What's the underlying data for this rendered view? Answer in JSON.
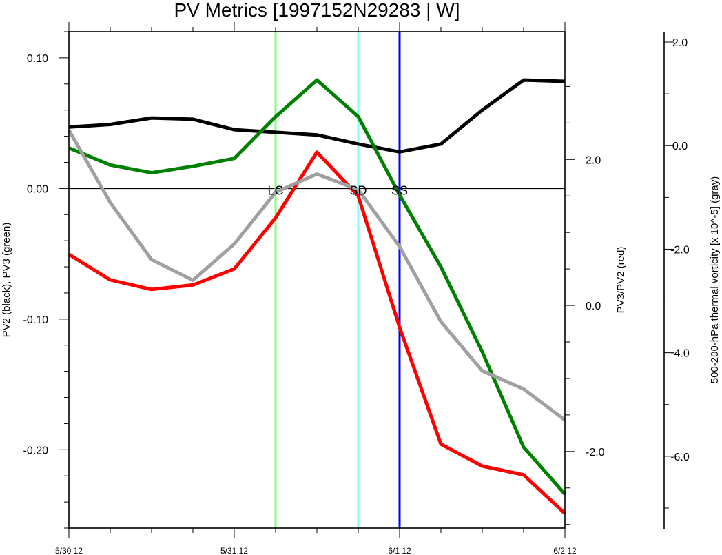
{
  "chart_data": {
    "type": "line",
    "title": "PV Metrics [1997152N29283 | W]",
    "x_tick_labels": [
      "5/30 12",
      "5/31 12",
      "6/1 12",
      "6/2 12"
    ],
    "x_step_hours": 6,
    "x_range_steps": [
      0,
      12
    ],
    "left_axis": {
      "label": "PV2 (black), PV3 (green)",
      "range": [
        -0.26,
        0.12
      ],
      "ticks": [
        0.1,
        0.0,
        -0.1,
        -0.2
      ],
      "tick_labels": [
        "0.10",
        "0.00",
        "-0.10",
        "-0.20"
      ]
    },
    "mid_axis": {
      "label": "PV3/PV2 (red)",
      "range": [
        -3.05,
        3.75
      ],
      "ticks": [
        2.0,
        0.0,
        -2.0
      ],
      "tick_labels": [
        "2.0",
        "0.0",
        "-2.0"
      ]
    },
    "right_axis": {
      "label": "500-200-hPa thermal vorticity [x 10^-5] (gray)",
      "range": [
        -7.4,
        2.2
      ],
      "ticks": [
        2.0,
        0.0,
        -2.0,
        -4.0,
        -6.0
      ],
      "tick_labels": [
        "2.0",
        "0.0",
        "-2.0",
        "-4.0",
        "-6.0"
      ]
    },
    "series": [
      {
        "color": "#000000",
        "axis": "left",
        "x_steps": [
          0,
          1,
          2,
          3,
          4,
          5,
          6,
          7,
          8,
          9,
          10,
          11,
          12
        ],
        "values": [
          0.047,
          0.049,
          0.054,
          0.053,
          0.045,
          0.043,
          0.041,
          0.034,
          0.028,
          0.034,
          0.06,
          0.083,
          0.082
        ]
      },
      {
        "color": "#008000",
        "axis": "left",
        "x_steps": [
          0,
          1,
          2,
          3,
          4,
          5,
          6,
          7,
          8,
          9,
          10,
          11,
          12
        ],
        "values": [
          0.031,
          0.018,
          0.012,
          0.017,
          0.023,
          0.055,
          0.083,
          0.055,
          -0.005,
          -0.06,
          -0.125,
          -0.198,
          -0.234
        ]
      },
      {
        "color": "#ff0000",
        "axis": "mid",
        "x_steps": [
          0,
          1,
          2,
          3,
          4,
          5,
          6,
          7,
          8,
          9,
          10,
          11,
          12
        ],
        "values": [
          0.7,
          0.35,
          0.22,
          0.28,
          0.5,
          1.2,
          2.1,
          1.5,
          -0.3,
          -1.9,
          -2.2,
          -2.32,
          -2.85
        ]
      },
      {
        "color": "#a0a0a0",
        "axis": "right",
        "x_steps": [
          0,
          1,
          2,
          3,
          4,
          5,
          6,
          7,
          8,
          9,
          10,
          11,
          12
        ],
        "values": [
          0.3,
          -1.1,
          -2.2,
          -2.6,
          -1.9,
          -0.9,
          -0.55,
          -0.85,
          -1.95,
          -3.4,
          -4.35,
          -4.7,
          -5.3
        ]
      }
    ],
    "zero_line_value": 0.0,
    "events": [
      {
        "label": "LC",
        "x_step": 5.0,
        "color": "#80ff80"
      },
      {
        "label": "SD",
        "x_step": 7.0,
        "color": "#80ffff"
      },
      {
        "label": "SS",
        "x_step": 8.0,
        "color": "#0000ff"
      }
    ]
  }
}
